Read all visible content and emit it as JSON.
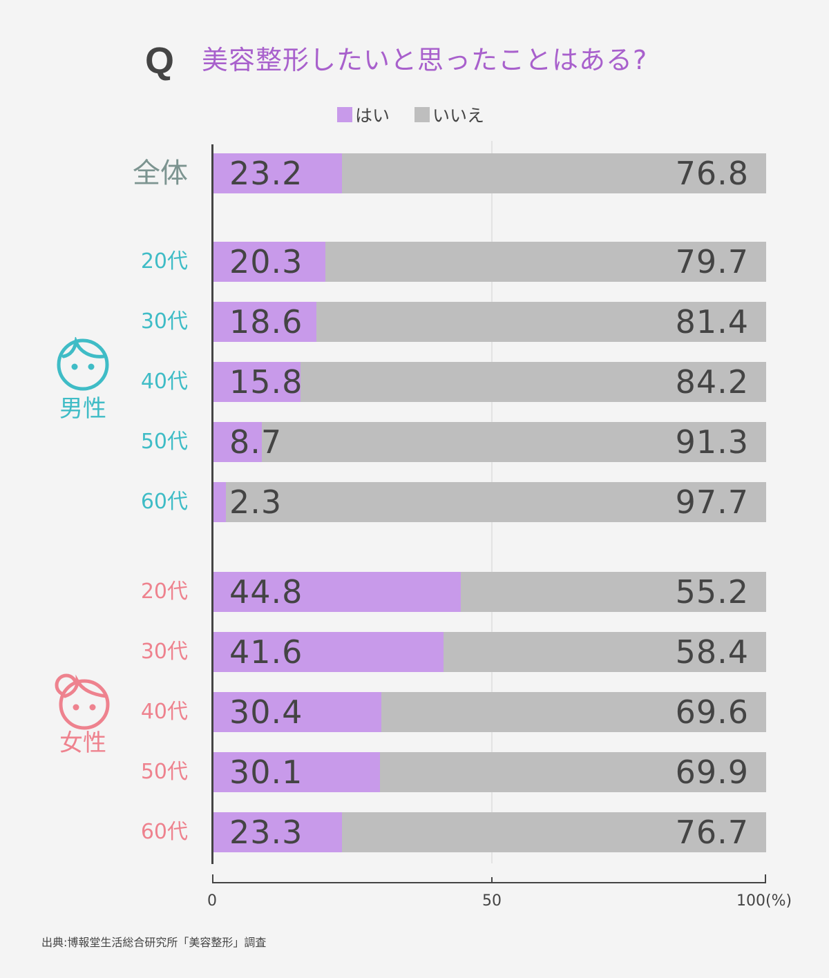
{
  "header": {
    "q_mark": "Q",
    "title": "美容整形したいと思ったことはある?"
  },
  "legend": [
    {
      "label": "はい",
      "color": "#c89aea"
    },
    {
      "label": "いいえ",
      "color": "#bebebe"
    }
  ],
  "groups": {
    "male": {
      "label": "男性",
      "icon": "boy-face-icon",
      "color": "#3fbcc6"
    },
    "female": {
      "label": "女性",
      "icon": "girl-face-icon",
      "color": "#ee828e"
    }
  },
  "rows": [
    {
      "label": "全体",
      "group": "total",
      "yes": "23.2",
      "no": "76.8"
    },
    {
      "label": "20代",
      "group": "male",
      "yes": "20.3",
      "no": "79.7"
    },
    {
      "label": "30代",
      "group": "male",
      "yes": "18.6",
      "no": "81.4"
    },
    {
      "label": "40代",
      "group": "male",
      "yes": "15.8",
      "no": "84.2"
    },
    {
      "label": "50代",
      "group": "male",
      "yes": "8.7",
      "no": "91.3"
    },
    {
      "label": "60代",
      "group": "male",
      "yes": "2.3",
      "no": "97.7"
    },
    {
      "label": "20代",
      "group": "female",
      "yes": "44.8",
      "no": "55.2"
    },
    {
      "label": "30代",
      "group": "female",
      "yes": "41.6",
      "no": "58.4"
    },
    {
      "label": "40代",
      "group": "female",
      "yes": "30.4",
      "no": "69.6"
    },
    {
      "label": "50代",
      "group": "female",
      "yes": "30.1",
      "no": "69.9"
    },
    {
      "label": "60代",
      "group": "female",
      "yes": "23.3",
      "no": "76.7"
    }
  ],
  "axis": {
    "ticks": [
      "0",
      "50",
      "100(%)"
    ]
  },
  "source": "出典:博報堂生活総合研究所「美容整形」調査",
  "chart_data": {
    "type": "bar",
    "orientation": "horizontal",
    "stacked": true,
    "title": "美容整形したいと思ったことはある?",
    "categories": [
      "全体",
      "男性20代",
      "男性30代",
      "男性40代",
      "男性50代",
      "男性60代",
      "女性20代",
      "女性30代",
      "女性40代",
      "女性50代",
      "女性60代"
    ],
    "series": [
      {
        "name": "はい",
        "color": "#c89aea",
        "values": [
          23.2,
          20.3,
          18.6,
          15.8,
          8.7,
          2.3,
          44.8,
          41.6,
          30.4,
          30.1,
          23.3
        ]
      },
      {
        "name": "いいえ",
        "color": "#bebebe",
        "values": [
          76.8,
          79.7,
          81.4,
          84.2,
          91.3,
          97.7,
          55.2,
          58.4,
          69.6,
          69.9,
          76.7
        ]
      }
    ],
    "xlabel": "(%)",
    "ylabel": "",
    "xlim": [
      0,
      100
    ],
    "xticks": [
      0,
      50,
      100
    ],
    "grid": "vertical line at 50",
    "legend_position": "top"
  }
}
